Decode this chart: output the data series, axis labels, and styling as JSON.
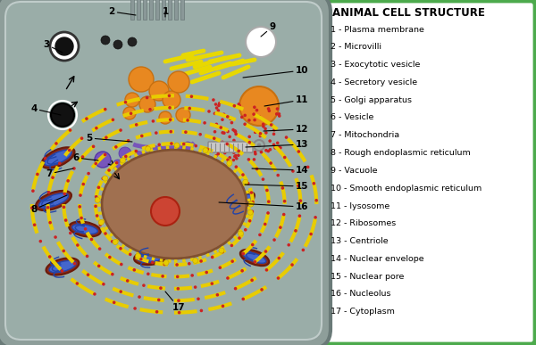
{
  "title": "ANIMAL CELL STRUCTURE",
  "bg_color": "#4caa4c",
  "cell_color": "#8e9e9a",
  "cell_border": "#6a7a78",
  "legend_items": [
    "1 - Plasma membrane",
    "2 - Microvilli",
    "3 - Exocytotic vesicle",
    "4 - Secretory vesicle",
    "5 - Golgi apparatus",
    "6 - Vesicle",
    "7 - Mitochondria",
    "8 - Rough endoplasmic reticulum",
    "9 - Vacuole",
    "10 - Smooth endoplasmic reticulum",
    "11 - lysosome",
    "12 - Ribosomes",
    "13 - Centriole",
    "14 - Nuclear envelope",
    "15 - Nuclear pore",
    "16 - Nucleolus",
    "17 - Cytoplasm"
  ],
  "labels": [
    [
      "3",
      52,
      337,
      70,
      328
    ],
    [
      "2",
      125,
      374,
      152,
      370
    ],
    [
      "1",
      185,
      374,
      185,
      368
    ],
    [
      "9",
      305,
      357,
      292,
      346
    ],
    [
      "4",
      38,
      265,
      68,
      258
    ],
    [
      "10",
      338,
      308,
      272,
      300
    ],
    [
      "11",
      338,
      275,
      296,
      268
    ],
    [
      "5",
      100,
      232,
      148,
      228
    ],
    [
      "6",
      85,
      210,
      110,
      207
    ],
    [
      "12",
      338,
      242,
      295,
      240
    ],
    [
      "13",
      338,
      225,
      275,
      222
    ],
    [
      "7",
      55,
      192,
      82,
      198
    ],
    [
      "14",
      338,
      196,
      282,
      198
    ],
    [
      "15",
      338,
      178,
      274,
      180
    ],
    [
      "8",
      38,
      152,
      75,
      168
    ],
    [
      "16",
      338,
      155,
      245,
      160
    ],
    [
      "17",
      200,
      42,
      185,
      60
    ]
  ]
}
